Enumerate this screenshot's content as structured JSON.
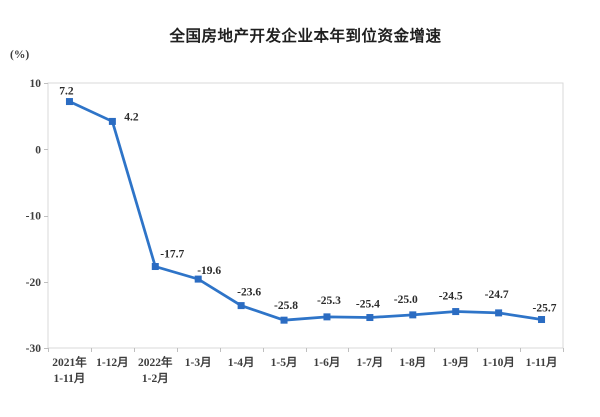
{
  "title": "全国房地产开发企业本年到位资金增速",
  "unit_label": "(%)",
  "colors": {
    "line": "#2E74C8",
    "marker": "#2B6CC2",
    "plot_border": "#D9D9D9",
    "tick": "#BFBFBF",
    "tick_label": "#3D3D3D",
    "data_label": "#2B2B2B",
    "title_text": "#1F1F1F",
    "background": "#FFFFFF"
  },
  "chart_data": {
    "type": "line",
    "title": "全国房地产开发企业本年到位资金增速",
    "ylabel": "(%)",
    "xlabel": "",
    "categories": [
      "2021年\n1-11月",
      "1-12月",
      "2022年\n1-2月",
      "1-3月",
      "1-4月",
      "1-5月",
      "1-6月",
      "1-7月",
      "1-8月",
      "1-9月",
      "1-10月",
      "1-11月"
    ],
    "values": [
      7.2,
      4.2,
      -17.7,
      -19.6,
      -23.6,
      -25.8,
      -25.3,
      -25.4,
      -25.0,
      -24.5,
      -24.7,
      -25.7
    ],
    "value_labels": [
      "7.2",
      "4.2",
      "-17.7",
      "-19.6",
      "-23.6",
      "-25.8",
      "-25.3",
      "-25.4",
      "-25.0",
      "-24.5",
      "-24.7",
      "-25.7"
    ],
    "ylim": [
      -30,
      10
    ],
    "yticks": [
      10,
      0,
      -10,
      -20,
      -30
    ],
    "grid": false,
    "legend": false,
    "marker": "square"
  }
}
